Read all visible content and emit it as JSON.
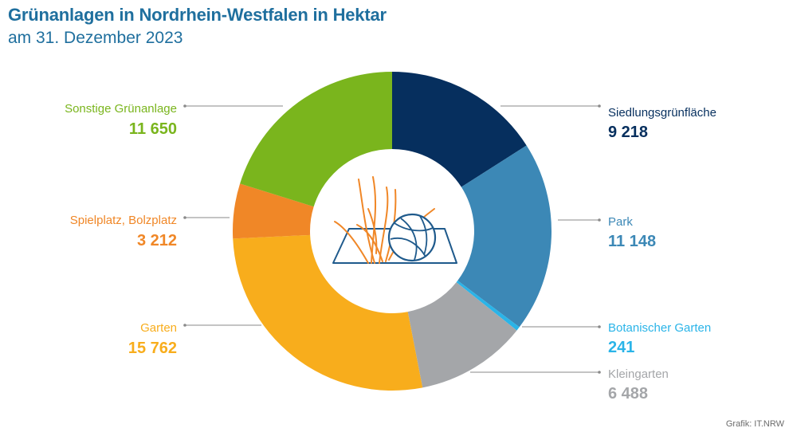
{
  "header": {
    "title": "Grünanlagen in Nordrhein-Westfalen in Hektar",
    "subtitle": "am 31. Dezember 2023"
  },
  "credit": "Grafik: IT.NRW",
  "chart_data": {
    "type": "pie",
    "donut": true,
    "title": "Grünanlagen in Nordrhein-Westfalen in Hektar",
    "subtitle": "am 31. Dezember 2023",
    "categories": [
      "Siedlungsgrünfläche",
      "Park",
      "Botanischer Garten",
      "Kleingarten",
      "Garten",
      "Spielplatz, Bolzplatz",
      "Sonstige Grünanlage"
    ],
    "values": [
      9218,
      11148,
      241,
      6488,
      15762,
      3212,
      11650
    ],
    "value_labels": [
      "9 218",
      "11 148",
      "241",
      "6 488",
      "15 762",
      "3 212",
      "11 650"
    ],
    "colors": [
      "#062f5e",
      "#3c88b6",
      "#2ab4e8",
      "#a4a6a9",
      "#f8ad1c",
      "#f08727",
      "#7ab51d"
    ],
    "legend": "none",
    "center_icon": "meadow-ball-icon",
    "center_icon_color": "#1f5a8c",
    "center_icon_accent": "#f08727"
  }
}
